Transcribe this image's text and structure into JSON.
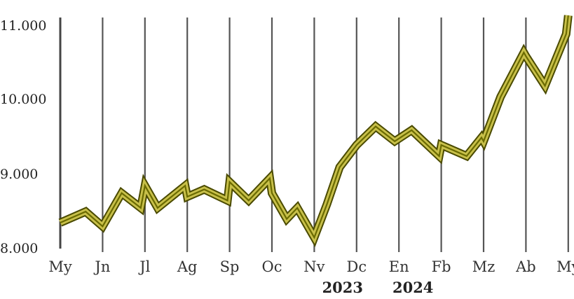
{
  "chart_data": {
    "type": "line",
    "title": "",
    "xlabel": "",
    "ylabel": "",
    "ylim": [
      8000,
      11300
    ],
    "y_ticks": [
      "11.000",
      "10.000",
      "9.000",
      "8.000"
    ],
    "y_tick_values": [
      11000,
      10000,
      9000,
      8000
    ],
    "x_ticks": [
      "My",
      "Jn",
      "Jl",
      "Ag",
      "Sp",
      "Oc",
      "Nv",
      "Dc",
      "En",
      "Fb",
      "Mz",
      "Ab",
      "My"
    ],
    "year_labels": [
      {
        "label": "2023",
        "at_month": 7
      },
      {
        "label": "2024",
        "at_month": 8
      }
    ],
    "grid": "vertical lines at each month",
    "series": [
      {
        "color": "#6b6b00",
        "fill_color": "#c8c04a",
        "x": [
          0,
          0.6,
          1,
          1.45,
          1.9,
          2,
          2.3,
          2.95,
          3,
          3.4,
          3.95,
          4,
          4.45,
          4.95,
          5,
          5.35,
          5.6,
          5.95,
          6,
          6.3,
          6.6,
          7,
          7.45,
          7.9,
          8.3,
          8.95,
          9,
          9.6,
          9.95,
          10,
          10.4,
          10.95,
          11,
          11.45,
          11.95,
          12.0
        ],
        "values": [
          8350,
          8500,
          8300,
          8750,
          8550,
          8850,
          8550,
          8850,
          8700,
          8800,
          8650,
          8900,
          8650,
          8950,
          8750,
          8400,
          8550,
          8200,
          8150,
          8600,
          9100,
          9400,
          9650,
          9450,
          9600,
          9250,
          9400,
          9250,
          9500,
          9450,
          10050,
          10650,
          10600,
          10200,
          10900,
          11150
        ]
      }
    ]
  }
}
